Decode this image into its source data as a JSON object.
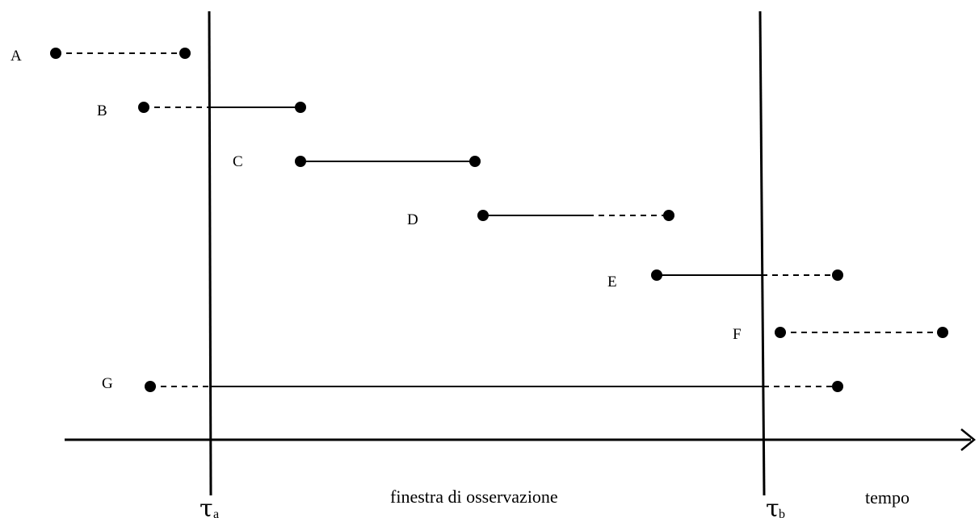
{
  "diagram": {
    "segments": [
      {
        "label": "A",
        "pattern": "dashed"
      },
      {
        "label": "B",
        "pattern": "dashed-then-solid"
      },
      {
        "label": "C",
        "pattern": "solid"
      },
      {
        "label": "D",
        "pattern": "solid-then-dashed"
      },
      {
        "label": "E",
        "pattern": "solid-then-dashed"
      },
      {
        "label": "F",
        "pattern": "dashed"
      },
      {
        "label": "G",
        "pattern": "dashed-solid-dashed"
      }
    ],
    "axis": {
      "time_label": "tempo",
      "window_label": "finestra di osservazione"
    },
    "boundaries": {
      "start_symbol": "τ",
      "start_sub": "a",
      "end_symbol": "τ",
      "end_sub": "b"
    },
    "colors": {
      "ink": "#000000",
      "background": "#ffffff"
    }
  }
}
